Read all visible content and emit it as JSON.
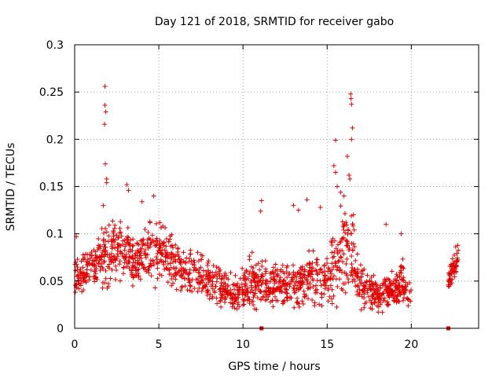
{
  "chart_data": {
    "type": "scatter",
    "title": "Day 121 of 2018, SRMTID for receiver gabo",
    "xlabel": "GPS time / hours",
    "ylabel": "SRMTID / TECUs",
    "xlim": [
      0,
      24
    ],
    "ylim": [
      0,
      0.3
    ],
    "xticks": [
      "0",
      "5",
      "10",
      "15",
      "20"
    ],
    "xtick_values": [
      0,
      5,
      10,
      15,
      20
    ],
    "yticks": [
      "0",
      "0.05",
      "0.1",
      "0.15",
      "0.2",
      "0.25",
      "0.3"
    ],
    "ytick_values": [
      0,
      0.05,
      0.1,
      0.15,
      0.2,
      0.25,
      0.3
    ],
    "grid": true,
    "marker": "+",
    "color": "#e00000",
    "series": [
      {
        "name": "SRMTID",
        "envelope": {
          "x": [
            0.0,
            0.5,
            1.0,
            1.5,
            2.0,
            2.5,
            3.0,
            3.5,
            4.0,
            4.5,
            5.0,
            5.5,
            6.0,
            6.5,
            7.0,
            7.5,
            8.0,
            8.5,
            9.0,
            9.5,
            10.0,
            10.5,
            11.0,
            11.5,
            12.0,
            12.5,
            13.0,
            13.5,
            14.0,
            14.5,
            15.0,
            15.5,
            16.0,
            16.5,
            17.0,
            17.5,
            18.0,
            18.5,
            19.0,
            19.5,
            20.0
          ],
          "center": [
            0.055,
            0.06,
            0.065,
            0.072,
            0.08,
            0.085,
            0.08,
            0.07,
            0.075,
            0.08,
            0.078,
            0.075,
            0.07,
            0.06,
            0.055,
            0.055,
            0.05,
            0.045,
            0.04,
            0.035,
            0.04,
            0.05,
            0.05,
            0.045,
            0.045,
            0.042,
            0.045,
            0.05,
            0.055,
            0.05,
            0.05,
            0.07,
            0.085,
            0.08,
            0.05,
            0.04,
            0.035,
            0.04,
            0.04,
            0.045,
            0.035
          ],
          "spread": [
            0.03,
            0.03,
            0.035,
            0.04,
            0.05,
            0.045,
            0.045,
            0.035,
            0.04,
            0.045,
            0.045,
            0.04,
            0.04,
            0.035,
            0.035,
            0.035,
            0.035,
            0.03,
            0.025,
            0.025,
            0.03,
            0.035,
            0.035,
            0.03,
            0.03,
            0.03,
            0.035,
            0.04,
            0.04,
            0.035,
            0.04,
            0.06,
            0.07,
            0.06,
            0.035,
            0.025,
            0.025,
            0.03,
            0.03,
            0.035,
            0.02
          ]
        },
        "late_segment": {
          "x_range": [
            22.2,
            22.8
          ],
          "center": [
            0.045,
            0.08
          ],
          "spread": 0.02
        },
        "peaks": [
          {
            "x": 1.8,
            "y": 0.256
          },
          {
            "x": 1.8,
            "y": 0.236
          },
          {
            "x": 1.85,
            "y": 0.229
          },
          {
            "x": 1.78,
            "y": 0.216
          },
          {
            "x": 1.82,
            "y": 0.174
          },
          {
            "x": 1.9,
            "y": 0.158
          },
          {
            "x": 1.9,
            "y": 0.154
          },
          {
            "x": 1.7,
            "y": 0.13
          },
          {
            "x": 3.1,
            "y": 0.152
          },
          {
            "x": 3.2,
            "y": 0.146
          },
          {
            "x": 4.7,
            "y": 0.14
          },
          {
            "x": 4.0,
            "y": 0.134
          },
          {
            "x": 11.1,
            "y": 0.135
          },
          {
            "x": 11.05,
            "y": 0.124
          },
          {
            "x": 13.0,
            "y": 0.13
          },
          {
            "x": 13.3,
            "y": 0.125
          },
          {
            "x": 13.8,
            "y": 0.136
          },
          {
            "x": 14.6,
            "y": 0.128
          },
          {
            "x": 15.5,
            "y": 0.199
          },
          {
            "x": 15.4,
            "y": 0.172
          },
          {
            "x": 15.5,
            "y": 0.165
          },
          {
            "x": 15.6,
            "y": 0.15
          },
          {
            "x": 16.2,
            "y": 0.182
          },
          {
            "x": 16.3,
            "y": 0.162
          },
          {
            "x": 16.35,
            "y": 0.158
          },
          {
            "x": 16.4,
            "y": 0.248
          },
          {
            "x": 16.42,
            "y": 0.243
          },
          {
            "x": 16.45,
            "y": 0.237
          },
          {
            "x": 16.5,
            "y": 0.212
          },
          {
            "x": 16.45,
            "y": 0.2
          },
          {
            "x": 15.8,
            "y": 0.144
          },
          {
            "x": 16.0,
            "y": 0.14
          },
          {
            "x": 18.5,
            "y": 0.11
          },
          {
            "x": 19.4,
            "y": 0.1
          },
          {
            "x": 0.1,
            "y": 0.097
          }
        ],
        "gap_markers": [
          {
            "x": 11.1,
            "y": 0.0
          },
          {
            "x": 22.2,
            "y": 0.0
          }
        ]
      }
    ]
  }
}
